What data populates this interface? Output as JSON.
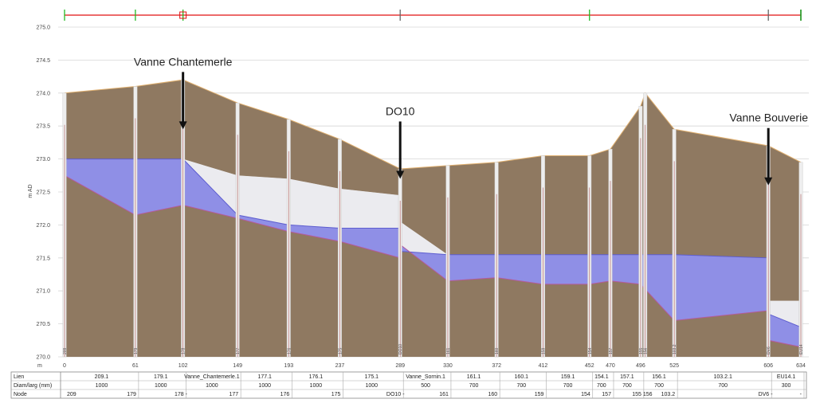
{
  "chart_data": {
    "type": "area",
    "ylabel": "m AD",
    "xlabel": "m",
    "ylim": [
      270.0,
      275.0
    ],
    "xlim": [
      0,
      634
    ],
    "y_ticks": [
      "275.0",
      "274.5",
      "274.0",
      "273.5",
      "273.0",
      "272.5",
      "272.0",
      "271.5",
      "271.0",
      "270.5",
      "270.0"
    ],
    "x_ticks": [
      "0",
      "61",
      "102",
      "149",
      "193",
      "237",
      "289",
      "330",
      "372",
      "412",
      "452",
      "470",
      "496",
      "525",
      "606",
      "634"
    ],
    "ground": {
      "x": [
        0,
        61,
        102,
        149,
        193,
        237,
        289,
        289,
        330,
        372,
        412,
        452,
        470,
        496,
        500,
        525,
        606,
        634
      ],
      "y": [
        274.0,
        274.1,
        274.2,
        273.85,
        273.6,
        273.3,
        272.85,
        272.85,
        272.9,
        272.95,
        273.05,
        273.05,
        273.15,
        273.8,
        274.0,
        273.45,
        273.2,
        272.95
      ]
    },
    "invert": {
      "x": [
        0,
        61,
        102,
        149,
        193,
        237,
        289,
        289,
        330,
        372,
        412,
        452,
        470,
        496,
        525,
        606,
        606,
        634
      ],
      "y": [
        272.75,
        272.15,
        272.3,
        272.1,
        271.9,
        271.75,
        271.5,
        271.7,
        271.15,
        271.2,
        271.1,
        271.1,
        271.15,
        271.1,
        270.55,
        270.7,
        270.25,
        270.15
      ]
    },
    "pipe_top": {
      "x": [
        0,
        61,
        102,
        149,
        193,
        237,
        289,
        289,
        330,
        372,
        412,
        452,
        470,
        496,
        525,
        606,
        606,
        634
      ],
      "y": [
        273.0,
        273.0,
        273.0,
        272.75,
        272.7,
        272.55,
        272.45,
        272.05,
        271.55,
        271.55,
        271.55,
        271.55,
        271.55,
        271.55,
        271.55,
        271.5,
        270.85,
        270.85
      ]
    },
    "water": {
      "x": [
        0,
        61,
        102,
        149,
        193,
        237,
        289,
        289,
        330,
        372,
        412,
        452,
        470,
        496,
        525,
        606,
        606,
        634
      ],
      "y": [
        273.0,
        273.0,
        273.0,
        272.15,
        272.0,
        271.95,
        271.95,
        271.6,
        271.55,
        271.55,
        271.55,
        271.55,
        271.55,
        271.55,
        271.55,
        271.5,
        270.65,
        270.45
      ]
    },
    "manhole_chainages": [
      0,
      61,
      102,
      149,
      193,
      237,
      289,
      330,
      372,
      412,
      452,
      470,
      496,
      500,
      525,
      606,
      634
    ],
    "node_labels": [
      "209",
      "179",
      "178",
      "177",
      "176",
      "175",
      "DO10",
      "161",
      "160",
      "159",
      "154",
      "157",
      "155",
      "156",
      "103.2",
      "DV6",
      "EU14"
    ],
    "annotations": [
      {
        "text": "Vanne Chantemerle",
        "x": 102,
        "y": 273.45
      },
      {
        "text": "DO10",
        "x": 289,
        "y": 272.7
      },
      {
        "text": "Vanne Bouverie",
        "x": 606,
        "y": 272.6
      }
    ],
    "overview_marks": [
      0,
      61,
      102,
      289,
      452,
      606,
      634
    ],
    "table": {
      "row_labels": [
        "Lien",
        "Diam/larg (mm)",
        "Node"
      ],
      "lien": [
        {
          "from": 0,
          "to": 61,
          "text": "209.1"
        },
        {
          "from": 61,
          "to": 102,
          "text": "179.1"
        },
        {
          "from": 102,
          "to": 149,
          "text": "Vanne_Chantemerle.1"
        },
        {
          "from": 149,
          "to": 193,
          "text": "177.1"
        },
        {
          "from": 193,
          "to": 237,
          "text": "176.1"
        },
        {
          "from": 237,
          "to": 289,
          "text": "175.1"
        },
        {
          "from": 289,
          "to": 330,
          "text": "Vanne_Sornin.1"
        },
        {
          "from": 330,
          "to": 372,
          "text": "161.1"
        },
        {
          "from": 372,
          "to": 412,
          "text": "160.1"
        },
        {
          "from": 412,
          "to": 452,
          "text": "159.1"
        },
        {
          "from": 452,
          "to": 470,
          "text": "154.1"
        },
        {
          "from": 470,
          "to": 496,
          "text": "157.1"
        },
        {
          "from": 496,
          "to": 525,
          "text": "156.1"
        },
        {
          "from": 525,
          "to": 606,
          "text": "103.2.1"
        },
        {
          "from": 606,
          "to": 634,
          "text": "EU14.1"
        }
      ],
      "diam": [
        {
          "from": 0,
          "to": 61,
          "text": "1000"
        },
        {
          "from": 61,
          "to": 102,
          "text": "1000"
        },
        {
          "from": 102,
          "to": 149,
          "text": "1000"
        },
        {
          "from": 149,
          "to": 193,
          "text": "1000"
        },
        {
          "from": 193,
          "to": 237,
          "text": "1000"
        },
        {
          "from": 237,
          "to": 289,
          "text": "1000"
        },
        {
          "from": 289,
          "to": 330,
          "text": "500"
        },
        {
          "from": 330,
          "to": 372,
          "text": "700"
        },
        {
          "from": 372,
          "to": 412,
          "text": "700"
        },
        {
          "from": 412,
          "to": 452,
          "text": "700"
        },
        {
          "from": 452,
          "to": 470,
          "text": "700"
        },
        {
          "from": 470,
          "to": 496,
          "text": "700"
        },
        {
          "from": 496,
          "to": 525,
          "text": "700"
        },
        {
          "from": 525,
          "to": 606,
          "text": "700"
        },
        {
          "from": 606,
          "to": 634,
          "text": "300"
        }
      ],
      "node": [
        {
          "from": 0,
          "to": 61,
          "left": "209",
          "right": "179"
        },
        {
          "from": 61,
          "to": 102,
          "left": "",
          "right": "178"
        },
        {
          "from": 102,
          "to": 149,
          "left": "-",
          "right": "177"
        },
        {
          "from": 149,
          "to": 193,
          "left": "",
          "right": "176"
        },
        {
          "from": 193,
          "to": 237,
          "left": "",
          "right": "175"
        },
        {
          "from": 237,
          "to": 289,
          "left": "",
          "right": "DO10"
        },
        {
          "from": 289,
          "to": 330,
          "left": "-",
          "right": "161"
        },
        {
          "from": 330,
          "to": 372,
          "left": "",
          "right": "160"
        },
        {
          "from": 372,
          "to": 412,
          "left": "",
          "right": "159"
        },
        {
          "from": 412,
          "to": 452,
          "left": "",
          "right": "154"
        },
        {
          "from": 452,
          "to": 470,
          "left": "",
          "right": "157"
        },
        {
          "from": 470,
          "to": 496,
          "left": "",
          "right": "155"
        },
        {
          "from": 496,
          "to": 525,
          "left": "156",
          "right": "103.2"
        },
        {
          "from": 525,
          "to": 606,
          "left": "",
          "right": "DV6"
        },
        {
          "from": 606,
          "to": 634,
          "left": "-",
          "right": "-"
        }
      ]
    },
    "colors": {
      "ground": "#8f7961",
      "pipe": "#e3e3e8",
      "water": "#8f8fe6",
      "water_edge": "#5d5dcf",
      "manhole_line": "#b56a6a",
      "overview_line": "#e01010",
      "overview_mark": "#22bb22",
      "grid": "#d6d6d6",
      "ground_edge": "#e0b070"
    }
  }
}
